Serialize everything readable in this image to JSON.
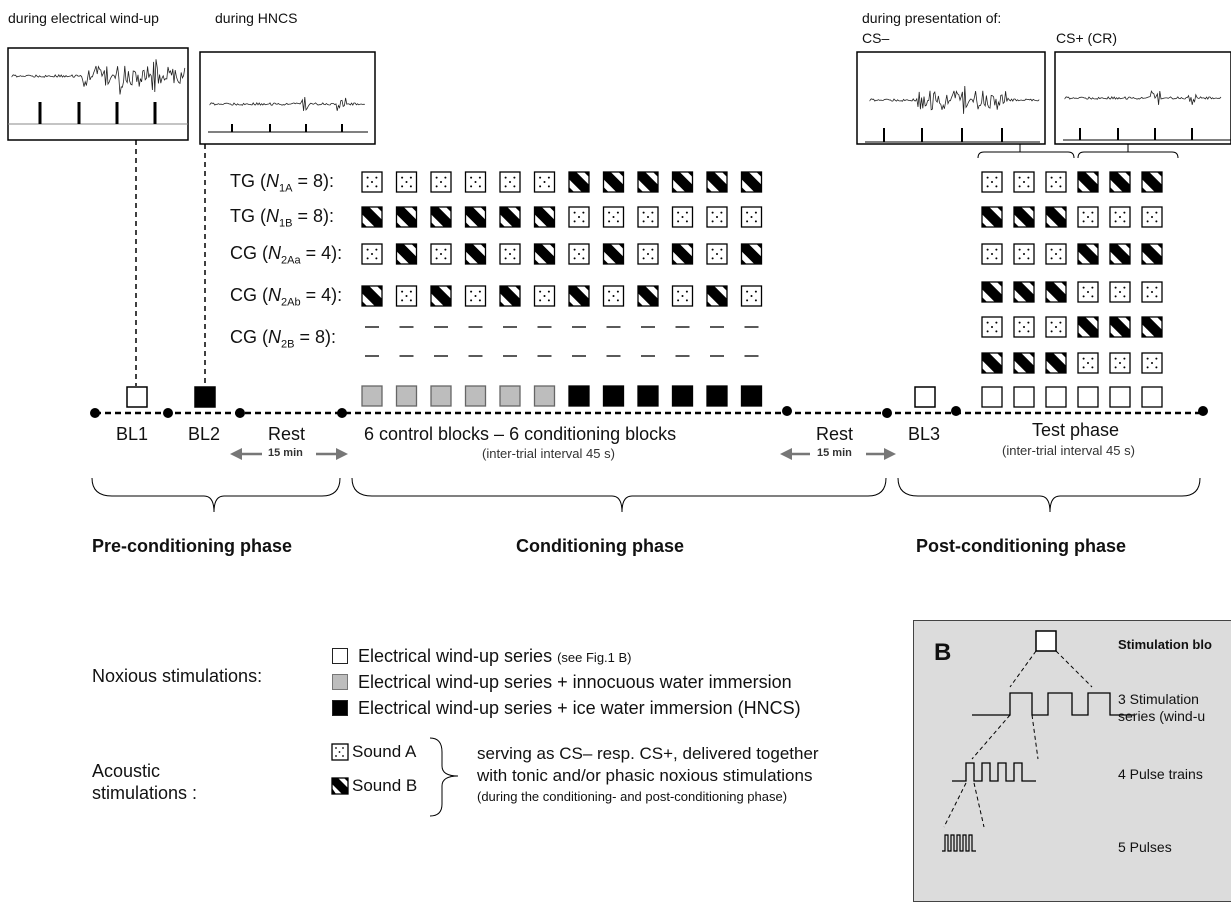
{
  "top_labels": {
    "wind_up": "during electrical wind-up",
    "hncs": "during HNCS",
    "presentation": "during presentation of:",
    "cs_minus": "CS–",
    "cs_plus": "CS+ (CR)"
  },
  "groups": [
    {
      "prefix": "TG (",
      "n": "N",
      "sub": "1A",
      "suffix": " = 8):",
      "cond": "AAAAAABBBBBB",
      "test": [
        "AAABBB"
      ]
    },
    {
      "prefix": "TG (",
      "n": "N",
      "sub": "1B",
      "suffix": " = 8):",
      "cond": "BBBBBBAAAAAA",
      "test": [
        "BBBAAA"
      ]
    },
    {
      "prefix": "CG (",
      "n": "N",
      "sub": "2Aa",
      "suffix": " = 4):",
      "cond": "ABABABABABAB",
      "test": [
        "AAABBB"
      ]
    },
    {
      "prefix": "CG (",
      "n": "N",
      "sub": "2Ab",
      "suffix": " = 4):",
      "cond": "BABABABABABA",
      "test": [
        "BBBAAA",
        "AAABBB"
      ]
    },
    {
      "prefix": "CG (",
      "n": "N",
      "sub": "2B",
      "suffix": " = 8):",
      "cond": "------------",
      "test": [
        "BBBAAA"
      ]
    }
  ],
  "timeline": {
    "bl1": "BL1",
    "bl2": "BL2",
    "rest1": "Rest",
    "rest1_dur": "15 min",
    "cond_label": "6 control blocks  –  6 conditioning blocks",
    "cond_sub": "(inter-trial interval 45 s)",
    "rest2": "Rest",
    "rest2_dur": "15 min",
    "bl3": "BL3",
    "test_label": "Test phase",
    "test_sub": "(inter-trial interval 45 s)"
  },
  "phases": {
    "pre": "Pre-conditioning phase",
    "cond": "Conditioning phase",
    "post": "Post-conditioning phase"
  },
  "legend": {
    "noxious_title": "Noxious stimulations:",
    "white": "Electrical wind-up series",
    "white_note": "(see Fig.1 B)",
    "gray": "Electrical wind-up series + innocuous water immersion",
    "black": "Electrical wind-up series + ice water immersion (HNCS)",
    "acoustic_title_1": "Acoustic",
    "acoustic_title_2": "stimulations :",
    "sound_a": "Sound A",
    "sound_b": "Sound B",
    "serving_1": "serving as CS– resp. CS+, delivered together",
    "serving_2": "with tonic and/or phasic noxious stimulations",
    "serving_3": "(during the conditioning- and post-conditioning phase)"
  },
  "inset": {
    "letter": "B",
    "title": "Stimulation blo",
    "l1a": "3 Stimulation",
    "l1b": "series (wind-u",
    "l2": "4 Pulse trains",
    "l3": "5 Pulses"
  },
  "colors": {
    "gray_block": "#bdbdbd",
    "black_block": "#000000",
    "inset_bg": "#dcdcdc"
  }
}
